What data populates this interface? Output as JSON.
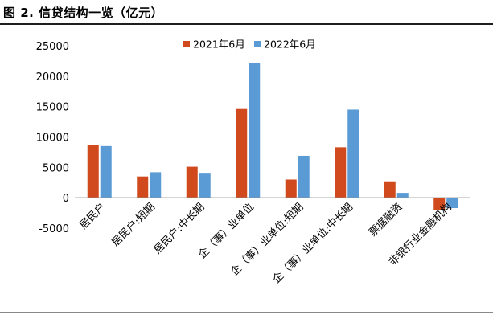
{
  "figure": {
    "title": "图 2. 信贷结构一览（亿元）"
  },
  "chart_data": {
    "type": "bar",
    "title": "",
    "xlabel": "",
    "ylabel": "",
    "ylim": [
      -5000,
      25000
    ],
    "yticks": [
      -5000,
      0,
      5000,
      10000,
      15000,
      20000,
      25000
    ],
    "legend_position": "top-center",
    "grid": false,
    "categories": [
      "居民户",
      "居民户:短期",
      "居民户:中长期",
      "企（事）业单位",
      "企（事）业单位:短期",
      "企（事）业单位:中长期",
      "票据融资",
      "非银行业金融机构"
    ],
    "series": [
      {
        "name": "2021年6月",
        "color": "#d04a1e",
        "values": [
          8700,
          3500,
          5100,
          14600,
          3000,
          8300,
          2700,
          -2000
        ]
      },
      {
        "name": "2022年6月",
        "color": "#5b9bd5",
        "values": [
          8500,
          4200,
          4100,
          22100,
          6900,
          14500,
          800,
          -1700
        ]
      }
    ]
  }
}
